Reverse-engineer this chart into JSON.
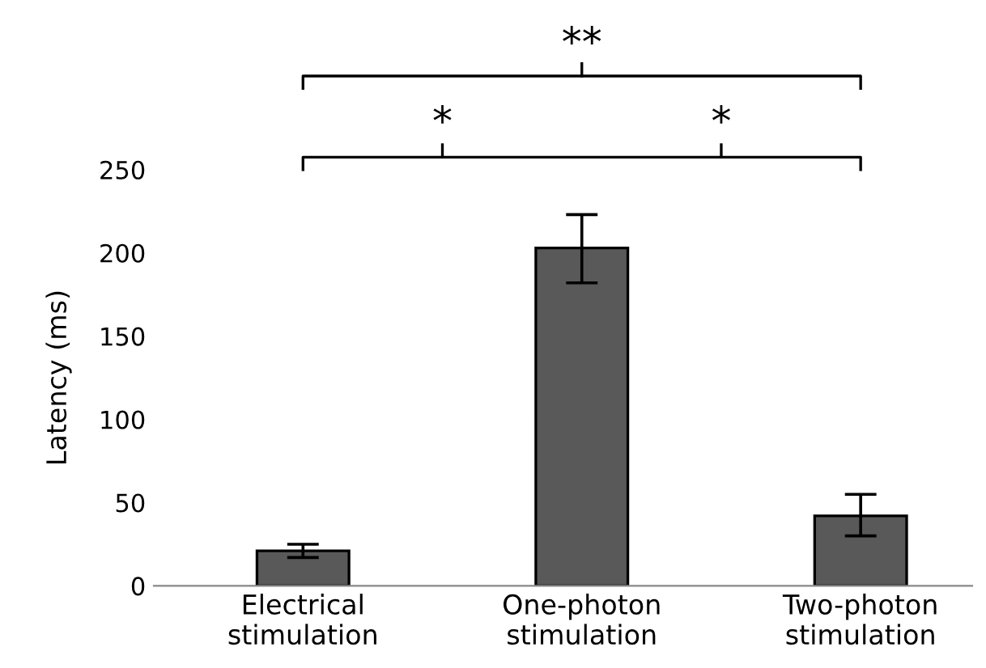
{
  "chart_data": {
    "type": "bar",
    "ylabel": "Latency (ms)",
    "categories": [
      "Electrical\nstimulation",
      "One-photon\nstimulation",
      "Two-photon\nstimulation"
    ],
    "values": [
      21,
      203,
      42
    ],
    "errors": [
      [
        17,
        25
      ],
      [
        182,
        223
      ],
      [
        30,
        55
      ]
    ],
    "color": "#595959",
    "ylim": [
      0,
      250
    ],
    "yticks": [
      0,
      50,
      100,
      150,
      200,
      250
    ],
    "grid": false,
    "legend": false,
    "annotations": [
      "*",
      "*",
      "**"
    ]
  }
}
